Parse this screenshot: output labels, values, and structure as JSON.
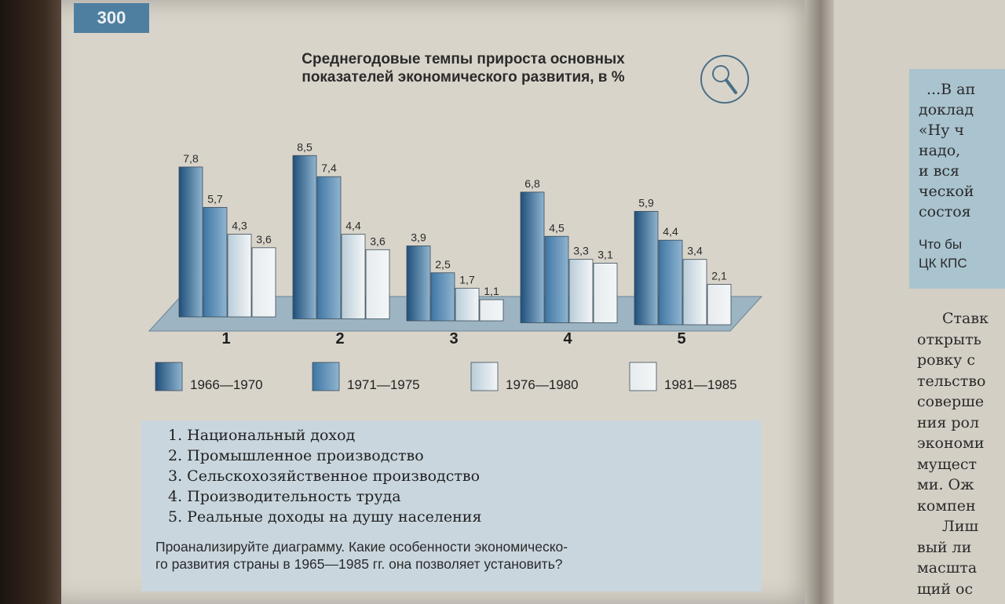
{
  "page": {
    "number": "300"
  },
  "chart_data": {
    "type": "bar",
    "title": "Среднегодовые темпы прироста основных показателей экономического развития, в %",
    "title_lines": [
      "Среднегодовые темпы прироста основных",
      "показателей экономического развития, в %"
    ],
    "categories": [
      "1",
      "2",
      "3",
      "4",
      "5"
    ],
    "series": [
      {
        "name": "1966—1970",
        "color": "#1f4f7a",
        "values": [
          7.8,
          8.5,
          3.9,
          6.8,
          5.9
        ]
      },
      {
        "name": "1971—1975",
        "color": "#3f76a5",
        "values": [
          5.7,
          7.4,
          2.5,
          4.5,
          4.4
        ]
      },
      {
        "name": "1976—1980",
        "color": "#b8ccd8",
        "values": [
          4.3,
          4.4,
          1.7,
          3.3,
          3.4
        ]
      },
      {
        "name": "1981—1985",
        "color": "#e6ebee",
        "values": [
          3.6,
          3.6,
          1.1,
          3.1,
          2.1
        ]
      }
    ],
    "value_labels": [
      [
        "7,8",
        "8,5",
        "3,9",
        "6,8",
        "5,9"
      ],
      [
        "5,7",
        "7,4",
        "2,5",
        "4,5",
        "4,4"
      ],
      [
        "4,3",
        "4,4",
        "1,7",
        "3,3",
        "3,4"
      ],
      [
        "3,6",
        "3,6",
        "1,1",
        "3,1",
        "2,1"
      ]
    ],
    "ylim": [
      0,
      9
    ]
  },
  "legend_items": [
    "1. Национальный доход",
    "2. Промышленное производство",
    "3. Сельскохозяйственное производство",
    "4. Производительность труда",
    "5. Реальные доходы на душу населения"
  ],
  "question": "Проанализируйте диаграмму. Какие особенности экономическо-го развития страны в 1965—1985 гг. она позволяет установить?",
  "question_lines": [
    "Проанализируйте диаграмму. Какие особенности экономическо-",
    "го развития страны в 1965—1985 гг. она позволяет установить?"
  ],
  "right_page": {
    "box_lines": [
      "...В ап",
      "доклад",
      "«Ну ч",
      "надо, ",
      "и вся ",
      "ческой",
      "состоя"
    ],
    "box_sans_lines": [
      "Что бы",
      "ЦК КПС"
    ],
    "body_lines": [
      "Ставк",
      "открыть",
      "ровку с",
      "тельство",
      "соверше",
      "ния рол",
      "экономи",
      "мущест",
      "ми. Ож",
      "компен",
      "Лиш",
      "вый ли",
      "масшта",
      "щий ос"
    ]
  },
  "colors": {
    "page_number_bg": "#4f7fa0",
    "legend_box_bg": "#c9d6de",
    "floor": "#9db4c2"
  },
  "icons": {
    "magnifier": "magnifier-icon"
  }
}
